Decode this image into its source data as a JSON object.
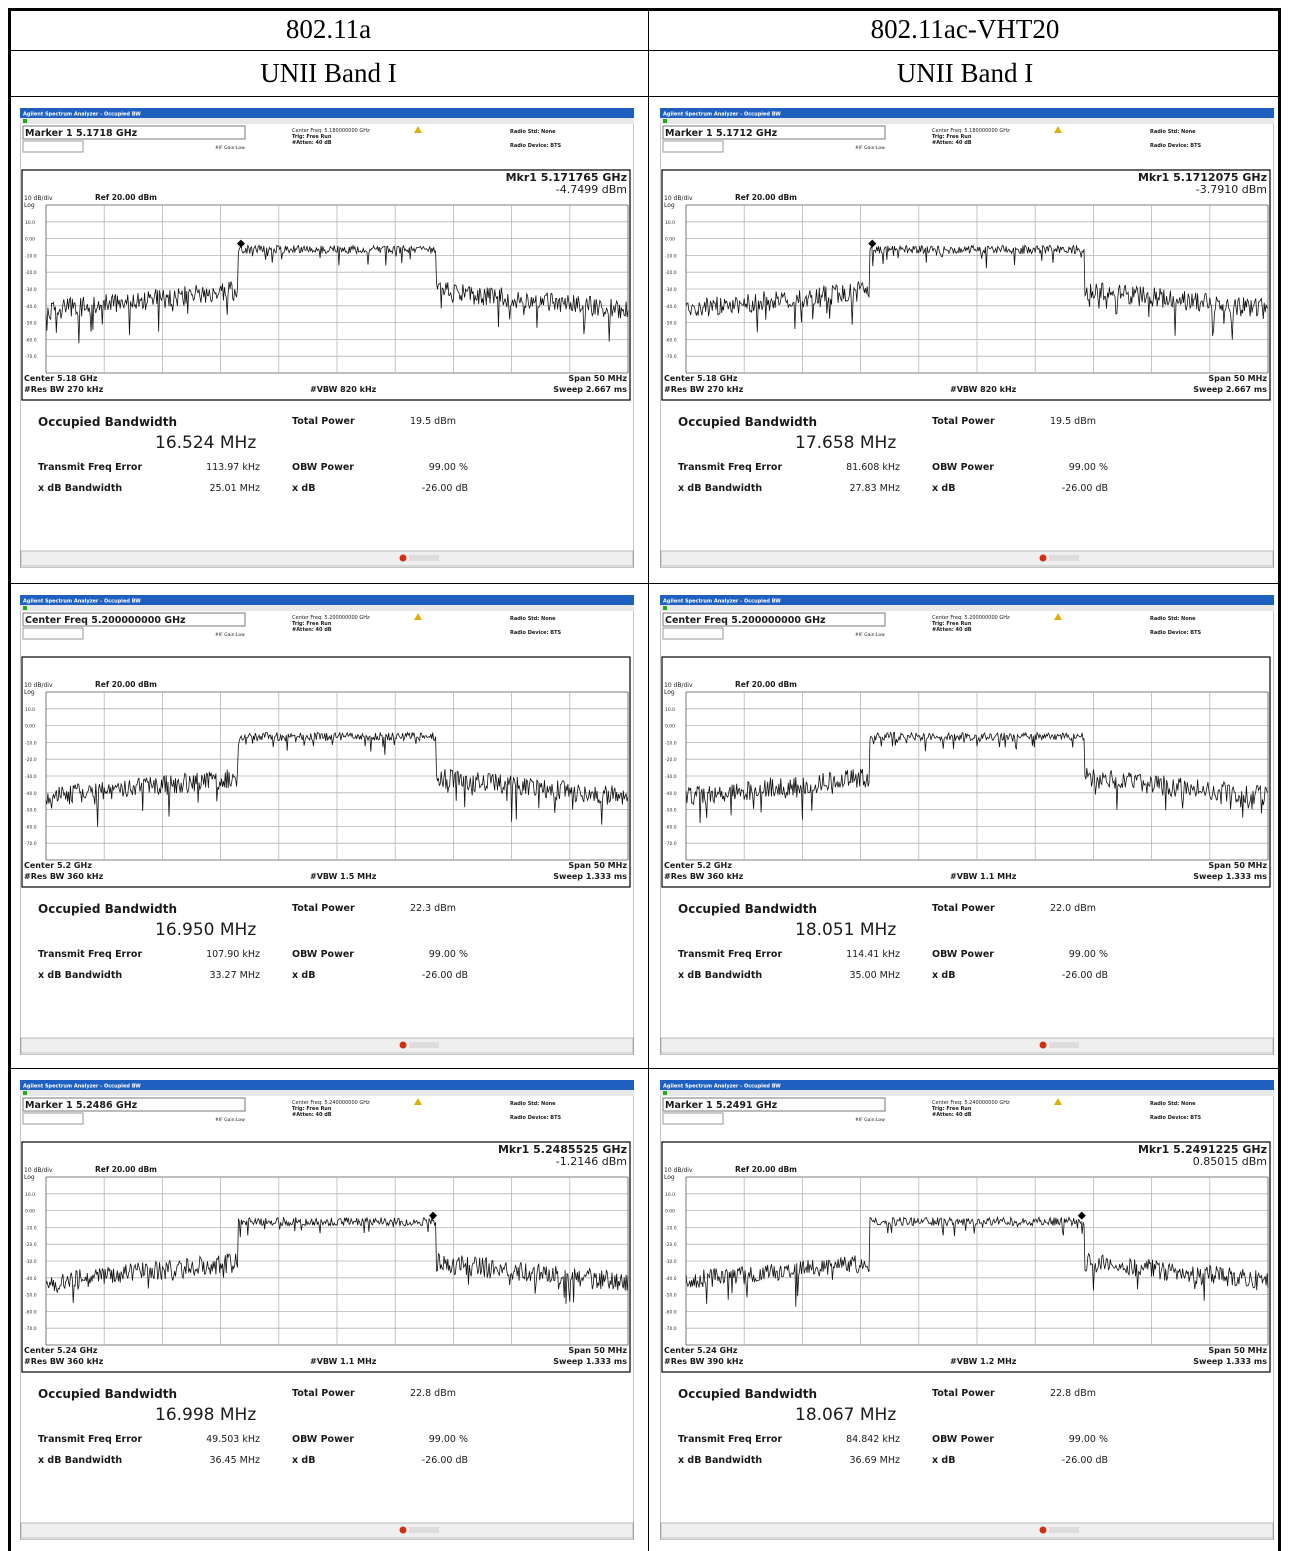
{
  "table": {
    "headers": [
      [
        "802.11a",
        "802.11ac-VHT20"
      ],
      [
        "UNII Band I",
        "UNII Band I"
      ]
    ],
    "cells": [
      [
        {
          "window_title": "Agilent Spectrum Analyzer - Occupied BW",
          "readout": "Marker 1 5.1718 GHz",
          "center_freq": "Center Freq: 5.180000000 GHz",
          "trig": "Trig: Free Run",
          "atten": "#Atten: 40 dB",
          "if_gain": "#IF Gain:Low",
          "radio_std": "Radio Std: None",
          "radio_device": "Radio Device: BTS",
          "marker_freq": "Mkr1 5.171765 GHz",
          "marker_level": "-4.7499 dBm",
          "scale": "10 dB/div",
          "log": "Log",
          "ref": "Ref 20.00 dBm",
          "scale_labels": [
            "10.0",
            "0.00",
            "-10.0",
            "-20.0",
            "-30.0",
            "-40.0",
            "-50.0",
            "-60.0",
            "-70.0"
          ],
          "center": "Center 5.18 GHz",
          "res_bw": "#Res BW 270 kHz",
          "vbw": "#VBW 820 kHz",
          "span": "Span 50 MHz",
          "sweep": "Sweep 2.667 ms",
          "obw_label": "Occupied Bandwidth",
          "obw": "16.524 MHz",
          "total_power_label": "Total Power",
          "total_power": "19.5 dBm",
          "tfe_label": "Transmit Freq Error",
          "tfe": "113.97 kHz",
          "obw_power_label": "OBW Power",
          "obw_power": "99.00 %",
          "xdb_bw_label": "x dB Bandwidth",
          "xdb_bw": "25.01 MHz",
          "xdb_label": "x dB",
          "xdb": "-26.00 dB"
        },
        {
          "window_title": "Agilent Spectrum Analyzer - Occupied BW",
          "readout": "Marker 1 5.1712 GHz",
          "center_freq": "Center Freq: 5.180000000 GHz",
          "trig": "Trig: Free Run",
          "atten": "#Atten: 40 dB",
          "if_gain": "#IF Gain:Low",
          "radio_std": "Radio Std: None",
          "radio_device": "Radio Device: BTS",
          "marker_freq": "Mkr1 5.1712075 GHz",
          "marker_level": "-3.7910 dBm",
          "scale": "10 dB/div",
          "log": "Log",
          "ref": "Ref 20.00 dBm",
          "scale_labels": [
            "10.0",
            "0.00",
            "-10.0",
            "-20.0",
            "-30.0",
            "-40.0",
            "-50.0",
            "-60.0",
            "-70.0"
          ],
          "center": "Center 5.18 GHz",
          "res_bw": "#Res BW 270 kHz",
          "vbw": "#VBW 820 kHz",
          "span": "Span 50 MHz",
          "sweep": "Sweep 2.667 ms",
          "obw_label": "Occupied Bandwidth",
          "obw": "17.658 MHz",
          "total_power_label": "Total Power",
          "total_power": "19.5 dBm",
          "tfe_label": "Transmit Freq Error",
          "tfe": "81.608 kHz",
          "obw_power_label": "OBW Power",
          "obw_power": "99.00 %",
          "xdb_bw_label": "x dB Bandwidth",
          "xdb_bw": "27.83 MHz",
          "xdb_label": "x dB",
          "xdb": "-26.00 dB"
        }
      ],
      [
        {
          "window_title": "Agilent Spectrum Analyzer - Occupied BW",
          "readout": "Center Freq 5.200000000 GHz",
          "center_freq": "Center Freq: 5.200000000 GHz",
          "trig": "Trig: Free Run",
          "atten": "#Atten: 40 dB",
          "if_gain": "#IF Gain:Low",
          "radio_std": "Radio Std: None",
          "radio_device": "Radio Device: BTS",
          "scale": "10 dB/div",
          "log": "Log",
          "ref": "Ref 20.00 dBm",
          "scale_labels": [
            "10.0",
            "0.00",
            "-10.0",
            "-20.0",
            "-30.0",
            "-40.0",
            "-50.0",
            "-60.0",
            "-70.0"
          ],
          "center": "Center 5.2 GHz",
          "res_bw": "#Res BW 360 kHz",
          "vbw": "#VBW 1.5 MHz",
          "span": "Span 50 MHz",
          "sweep": "Sweep 1.333 ms",
          "obw_label": "Occupied Bandwidth",
          "obw": "16.950 MHz",
          "total_power_label": "Total Power",
          "total_power": "22.3 dBm",
          "tfe_label": "Transmit Freq Error",
          "tfe": "107.90 kHz",
          "obw_power_label": "OBW Power",
          "obw_power": "99.00 %",
          "xdb_bw_label": "x dB Bandwidth",
          "xdb_bw": "33.27 MHz",
          "xdb_label": "x dB",
          "xdb": "-26.00 dB"
        },
        {
          "window_title": "Agilent Spectrum Analyzer - Occupied BW",
          "readout": "Center Freq 5.200000000 GHz",
          "center_freq": "Center Freq: 5.200000000 GHz",
          "trig": "Trig: Free Run",
          "atten": "#Atten: 40 dB",
          "if_gain": "#IF Gain:Low",
          "radio_std": "Radio Std: None",
          "radio_device": "Radio Device: BTS",
          "scale": "10 dB/div",
          "log": "Log",
          "ref": "Ref 20.00 dBm",
          "scale_labels": [
            "10.0",
            "0.00",
            "-10.0",
            "-20.0",
            "-30.0",
            "-40.0",
            "-50.0",
            "-60.0",
            "-70.0"
          ],
          "center": "Center 5.2 GHz",
          "res_bw": "#Res BW 360 kHz",
          "vbw": "#VBW 1.1 MHz",
          "span": "Span 50 MHz",
          "sweep": "Sweep 1.333 ms",
          "obw_label": "Occupied Bandwidth",
          "obw": "18.051 MHz",
          "total_power_label": "Total Power",
          "total_power": "22.0 dBm",
          "tfe_label": "Transmit Freq Error",
          "tfe": "114.41 kHz",
          "obw_power_label": "OBW Power",
          "obw_power": "99.00 %",
          "xdb_bw_label": "x dB Bandwidth",
          "xdb_bw": "35.00 MHz",
          "xdb_label": "x dB",
          "xdb": "-26.00 dB"
        }
      ],
      [
        {
          "window_title": "Agilent Spectrum Analyzer - Occupied BW",
          "readout": "Marker 1 5.2486 GHz",
          "center_freq": "Center Freq: 5.240000000 GHz",
          "trig": "Trig: Free Run",
          "atten": "#Atten: 40 dB",
          "if_gain": "#IF Gain:Low",
          "radio_std": "Radio Std: None",
          "radio_device": "Radio Device: BTS",
          "marker_freq": "Mkr1 5.2485525 GHz",
          "marker_level": "-1.2146 dBm",
          "scale": "10 dB/div",
          "log": "Log",
          "ref": "Ref 20.00 dBm",
          "scale_labels": [
            "10.0",
            "0.00",
            "-10.0",
            "-20.0",
            "-30.0",
            "-40.0",
            "-50.0",
            "-60.0",
            "-70.0"
          ],
          "center": "Center 5.24 GHz",
          "res_bw": "#Res BW 360 kHz",
          "vbw": "#VBW 1.1 MHz",
          "span": "Span 50 MHz",
          "sweep": "Sweep 1.333 ms",
          "obw_label": "Occupied Bandwidth",
          "obw": "16.998 MHz",
          "total_power_label": "Total Power",
          "total_power": "22.8 dBm",
          "tfe_label": "Transmit Freq Error",
          "tfe": "49.503 kHz",
          "obw_power_label": "OBW Power",
          "obw_power": "99.00 %",
          "xdb_bw_label": "x dB Bandwidth",
          "xdb_bw": "36.45 MHz",
          "xdb_label": "x dB",
          "xdb": "-26.00 dB"
        },
        {
          "window_title": "Agilent Spectrum Analyzer - Occupied BW",
          "readout": "Marker 1 5.2491 GHz",
          "center_freq": "Center Freq: 5.240000000 GHz",
          "trig": "Trig: Free Run",
          "atten": "#Atten: 40 dB",
          "if_gain": "#IF Gain:Low",
          "radio_std": "Radio Std: None",
          "radio_device": "Radio Device: BTS",
          "marker_freq": "Mkr1 5.2491225 GHz",
          "marker_level": "0.85015 dBm",
          "scale": "10 dB/div",
          "log": "Log",
          "ref": "Ref 20.00 dBm",
          "scale_labels": [
            "10.0",
            "0.00",
            "-10.0",
            "-20.0",
            "-30.0",
            "-40.0",
            "-50.0",
            "-60.0",
            "-70.0"
          ],
          "center": "Center 5.24 GHz",
          "res_bw": "#Res BW 390 kHz",
          "vbw": "#VBW 1.2 MHz",
          "span": "Span 50 MHz",
          "sweep": "Sweep 1.333 ms",
          "obw_label": "Occupied Bandwidth",
          "obw": "18.067 MHz",
          "total_power_label": "Total Power",
          "total_power": "22.8 dBm",
          "tfe_label": "Transmit Freq Error",
          "tfe": "84.842 kHz",
          "obw_power_label": "OBW Power",
          "obw_power": "99.00 %",
          "xdb_bw_label": "x dB Bandwidth",
          "xdb_bw": "36.69 MHz",
          "xdb_label": "x dB",
          "xdb": "-26.00 dB"
        }
      ]
    ]
  }
}
